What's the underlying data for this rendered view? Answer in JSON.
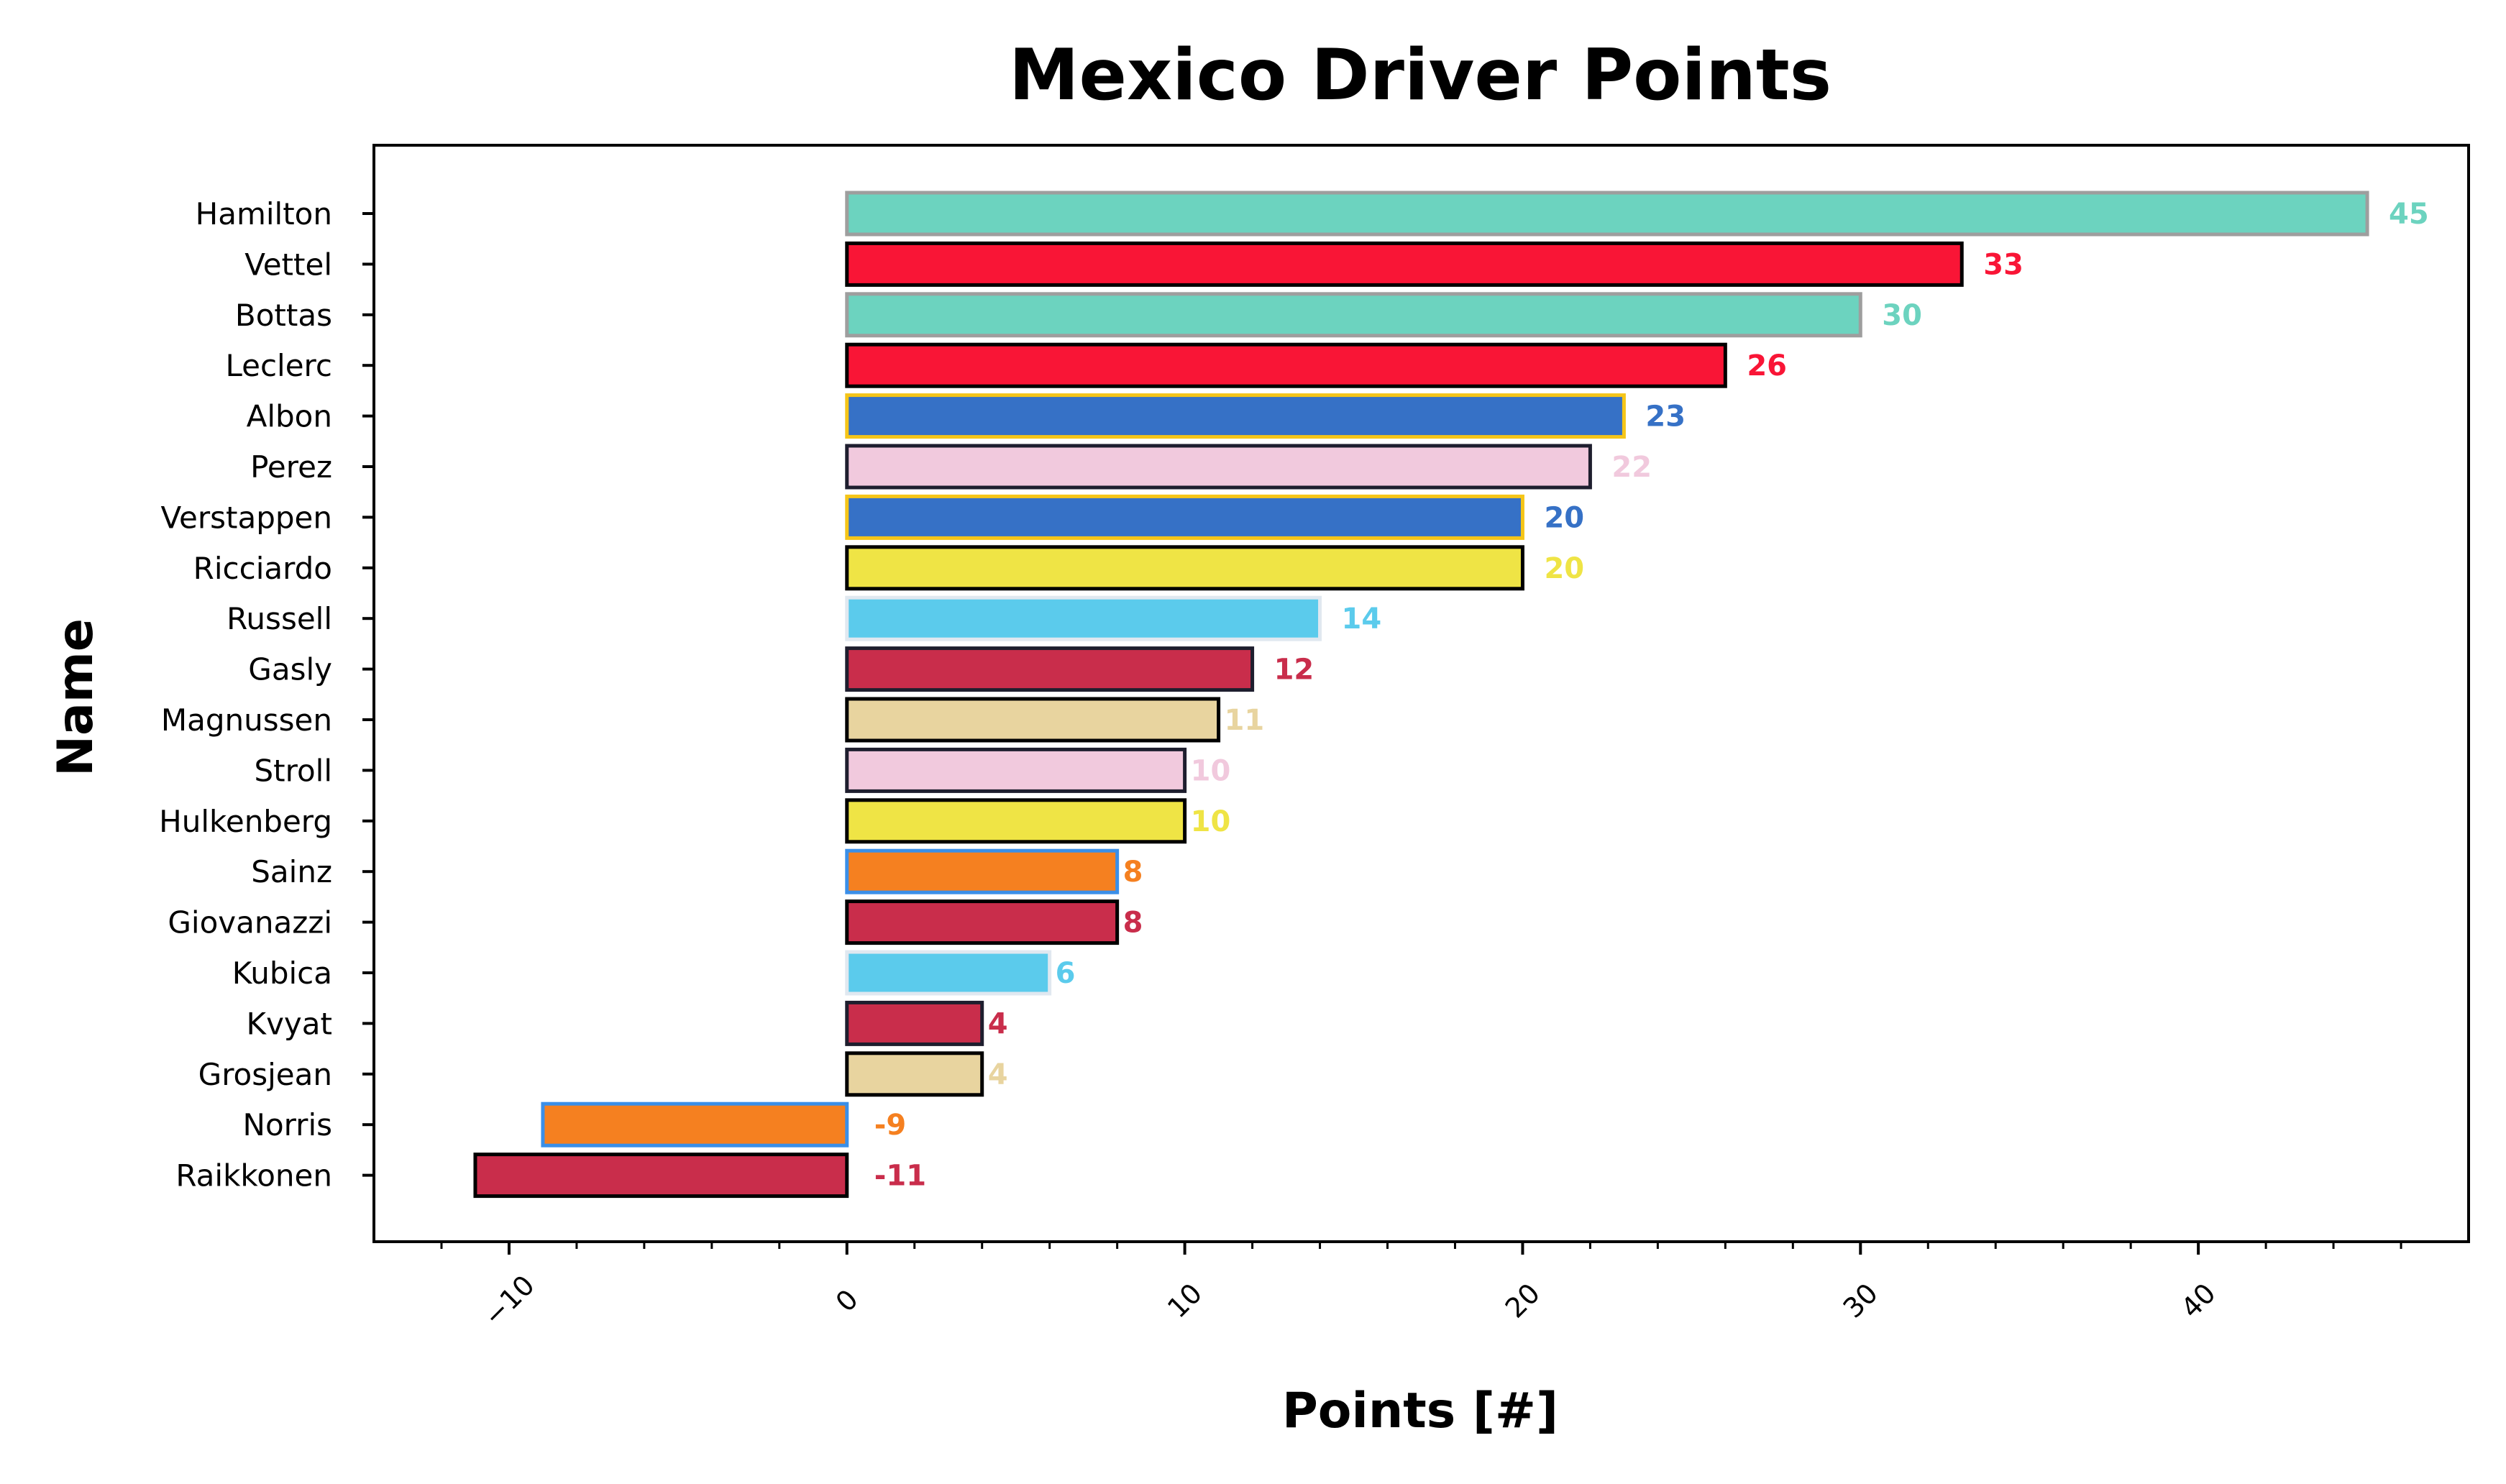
{
  "chart_data": {
    "type": "bar",
    "orientation": "horizontal",
    "title": "Mexico Driver Points",
    "xlabel": "Points [#]",
    "ylabel": "Name",
    "xlim": [
      -14,
      48
    ],
    "xticks": [
      -10,
      0,
      10,
      20,
      30,
      40
    ],
    "xtick_labels": [
      "−10",
      "0",
      "10",
      "20",
      "30",
      "40"
    ],
    "grid": false,
    "legend": "none",
    "categories": [
      "Hamilton",
      "Vettel",
      "Bottas",
      "Leclerc",
      "Albon",
      "Perez",
      "Verstappen",
      "Ricciardo",
      "Russell",
      "Gasly",
      "Magnussen",
      "Stroll",
      "Hulkenberg",
      "Sainz",
      "Giovanazzi",
      "Kubica",
      "Kvyat",
      "Grosjean",
      "Norris",
      "Raikkonen"
    ],
    "values": [
      45,
      33,
      30,
      26,
      23,
      22,
      20,
      20,
      14,
      12,
      11,
      10,
      10,
      8,
      8,
      6,
      4,
      4,
      -9,
      -11
    ],
    "data_labels": [
      "45",
      "33",
      "30",
      "26",
      "23",
      "22",
      "20",
      "20",
      "14",
      "12",
      "11",
      "10",
      "10",
      "8",
      "8",
      "6",
      "4",
      "4",
      "-9",
      "-11"
    ],
    "fill_colors": [
      "#6cd3bf",
      "#f91536",
      "#6cd3bf",
      "#f91536",
      "#3671c6",
      "#f1c9dd",
      "#3671c6",
      "#efe445",
      "#5bcbec",
      "#c92d4b",
      "#e8d49f",
      "#f1c9dd",
      "#efe445",
      "#f58020",
      "#c92d4b",
      "#5bcbec",
      "#c92d4b",
      "#e8d49f",
      "#f58020",
      "#c92d4b"
    ],
    "edge_colors": [
      "#9e9e9e",
      "#000000",
      "#9e9e9e",
      "#000000",
      "#f5c518",
      "#1e1e2e",
      "#f5c518",
      "#000000",
      "#e0e8f0",
      "#1e1e2e",
      "#000000",
      "#1e1e2e",
      "#000000",
      "#3a8fe8",
      "#000000",
      "#e0e8f0",
      "#1e1e2e",
      "#000000",
      "#3a8fe8",
      "#000000"
    ]
  }
}
